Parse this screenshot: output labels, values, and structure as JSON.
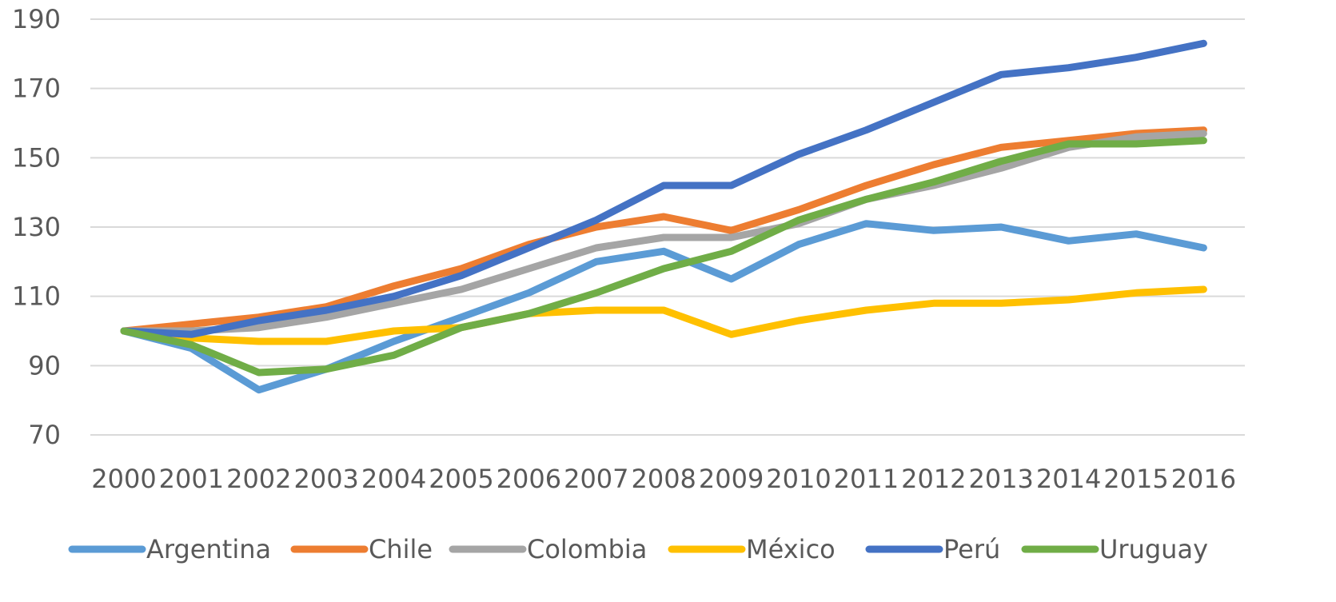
{
  "chart_data": {
    "type": "line",
    "title": "",
    "xlabel": "",
    "ylabel": "",
    "categories": [
      "2000",
      "2001",
      "2002",
      "2003",
      "2004",
      "2005",
      "2006",
      "2007",
      "2008",
      "2009",
      "2010",
      "2011",
      "2012",
      "2013",
      "2014",
      "2015",
      "2016"
    ],
    "ylim": [
      70,
      190
    ],
    "yticks": [
      70,
      90,
      110,
      130,
      150,
      170,
      190
    ],
    "grid": true,
    "legend_position": "bottom",
    "series": [
      {
        "name": "Argentina",
        "color": "#5b9bd5",
        "values": [
          100,
          95,
          83,
          89,
          97,
          104,
          111,
          120,
          123,
          115,
          125,
          131,
          129,
          130,
          126,
          128,
          124
        ]
      },
      {
        "name": "Chile",
        "color": "#ed7d31",
        "values": [
          100,
          102,
          104,
          107,
          113,
          118,
          125,
          130,
          133,
          129,
          135,
          142,
          148,
          153,
          155,
          157,
          158
        ]
      },
      {
        "name": "Colombia",
        "color": "#a5a5a5",
        "values": [
          100,
          100,
          101,
          104,
          108,
          112,
          118,
          124,
          127,
          127,
          131,
          138,
          142,
          147,
          153,
          156,
          157
        ]
      },
      {
        "name": "México",
        "color": "#ffc000",
        "values": [
          100,
          98,
          97,
          97,
          100,
          101,
          105,
          106,
          106,
          99,
          103,
          106,
          108,
          108,
          109,
          111,
          112
        ]
      },
      {
        "name": "Perú",
        "color": "#4472c4",
        "values": [
          100,
          99,
          103,
          106,
          110,
          116,
          124,
          132,
          142,
          142,
          151,
          158,
          166,
          174,
          176,
          179,
          183
        ]
      },
      {
        "name": "Uruguay",
        "color": "#70ad47",
        "values": [
          100,
          96,
          88,
          89,
          93,
          101,
          105,
          111,
          118,
          123,
          132,
          138,
          143,
          149,
          154,
          154,
          155
        ]
      }
    ]
  }
}
